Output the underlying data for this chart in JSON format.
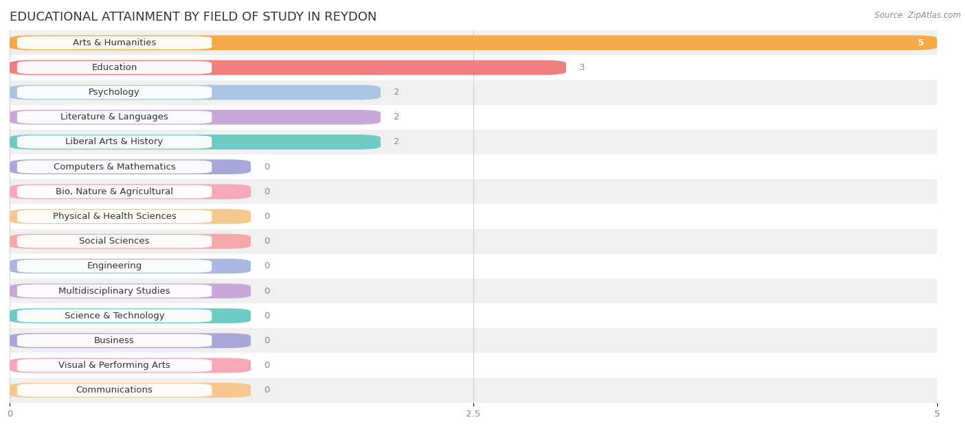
{
  "title": "EDUCATIONAL ATTAINMENT BY FIELD OF STUDY IN REYDON",
  "source": "Source: ZipAtlas.com",
  "categories": [
    "Arts & Humanities",
    "Education",
    "Psychology",
    "Literature & Languages",
    "Liberal Arts & History",
    "Computers & Mathematics",
    "Bio, Nature & Agricultural",
    "Physical & Health Sciences",
    "Social Sciences",
    "Engineering",
    "Multidisciplinary Studies",
    "Science & Technology",
    "Business",
    "Visual & Performing Arts",
    "Communications"
  ],
  "values": [
    5,
    3,
    2,
    2,
    2,
    0,
    0,
    0,
    0,
    0,
    0,
    0,
    0,
    0,
    0
  ],
  "bar_colors": [
    "#F5A947",
    "#F08080",
    "#A8C4E0",
    "#C8A8D8",
    "#6ECBC4",
    "#A8A8D8",
    "#F4A8B8",
    "#F5C890",
    "#F4A8A8",
    "#A8B8E0",
    "#C8A8D8",
    "#6ECBC4",
    "#A8A8D8",
    "#F4A8B8",
    "#F5C890"
  ],
  "stub_widths": [
    5,
    3,
    2,
    2,
    2,
    1.3,
    1.3,
    1.3,
    1.3,
    1.3,
    1.3,
    1.3,
    1.3,
    1.3,
    1.3
  ],
  "xlim": [
    0,
    5
  ],
  "xticks": [
    0,
    2.5,
    5
  ],
  "background_color": "#ffffff",
  "title_fontsize": 13,
  "label_fontsize": 9.5,
  "value_fontsize": 9.5
}
